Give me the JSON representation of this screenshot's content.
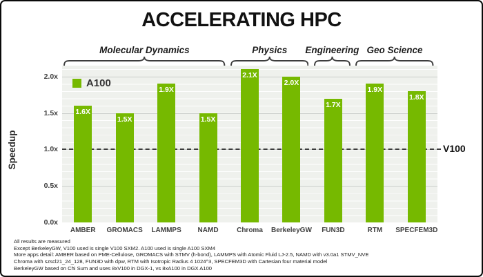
{
  "title": "ACCELERATING HPC",
  "chart_data": {
    "type": "bar",
    "title": "ACCELERATING HPC",
    "xlabel": "",
    "ylabel": "Speedup",
    "categories": [
      "AMBER",
      "GROMACS",
      "LAMMPS",
      "NAMD",
      "Chroma",
      "BerkeleyGW",
      "FUN3D",
      "RTM",
      "SPECFEM3D"
    ],
    "values": [
      1.6,
      1.5,
      1.9,
      1.5,
      2.1,
      2.0,
      1.7,
      1.9,
      1.8
    ],
    "value_labels": [
      "1.6X",
      "1.5X",
      "1.9X",
      "1.5X",
      "2.1X",
      "2.0X",
      "1.7X",
      "1.9X",
      "1.8X"
    ],
    "bar_color": "#76B900",
    "ylim": [
      0,
      2.15
    ],
    "yticks": [
      "0.0x",
      "0.5x",
      "1.0x",
      "1.5x",
      "2.0x"
    ],
    "ytick_values": [
      0,
      0.5,
      1.0,
      1.5,
      2.0
    ],
    "grid": true,
    "legend": [
      {
        "name": "A100",
        "color": "#76B900"
      }
    ],
    "legend_position": "upper left",
    "baseline": {
      "value": 1.0,
      "label": "V100",
      "style": "dashed"
    },
    "groups": [
      {
        "label": "Molecular Dynamics",
        "start": 0,
        "end": 3
      },
      {
        "label": "Physics",
        "start": 4,
        "end": 5
      },
      {
        "label": "Engineering",
        "start": 6,
        "end": 6
      },
      {
        "label": "Geo Science",
        "start": 7,
        "end": 8
      }
    ]
  },
  "footnotes": [
    "All results are measured",
    "Except BerkeleyGW, V100 used is single V100 SXM2. A100 used is single A100 SXM4",
    "More apps detail:  AMBER based on PME-Cellulose,  GROMACS with STMV (h-bond), LAMMPS with Atomic Fluid LJ-2.5, NAMD with v3.0a1 STMV_NVE",
    "Chroma with szscl21_24_128, FUN3D with dpw,  RTM with Isotropic Radius 4 1024^3, SPECFEM3D with Cartesian four material model",
    "BerkeleyGW based on Chi Sum and uses 8xV100 in DGX-1, vs 8xA100 in DGX A100"
  ]
}
